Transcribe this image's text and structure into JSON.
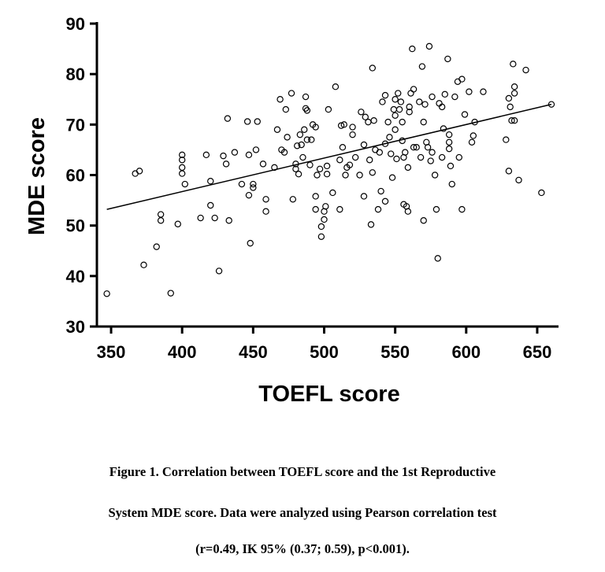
{
  "chart_data": {
    "type": "scatter",
    "xlabel": "TOEFL score",
    "ylabel": "MDE score",
    "xlim": [
      340,
      665
    ],
    "ylim": [
      30,
      90
    ],
    "xticks": [
      350,
      400,
      450,
      500,
      550,
      600,
      650
    ],
    "yticks": [
      30,
      40,
      50,
      60,
      70,
      80,
      90
    ],
    "grid": false,
    "legend": "none",
    "marker": "open-circle",
    "trendline": {
      "x": [
        347,
        660
      ],
      "y": [
        53.2,
        74.0
      ]
    },
    "points": [
      [
        347,
        36.5
      ],
      [
        367,
        60.3
      ],
      [
        370,
        60.8
      ],
      [
        373,
        42.2
      ],
      [
        382,
        45.8
      ],
      [
        385,
        52.2
      ],
      [
        385,
        51.0
      ],
      [
        392,
        36.6
      ],
      [
        397,
        50.3
      ],
      [
        400,
        64.0
      ],
      [
        400,
        63.0
      ],
      [
        400,
        61.5
      ],
      [
        400,
        60.3
      ],
      [
        402,
        58.2
      ],
      [
        413,
        51.5
      ],
      [
        417,
        64.0
      ],
      [
        420,
        58.8
      ],
      [
        420,
        54.0
      ],
      [
        423,
        51.5
      ],
      [
        426,
        41.0
      ],
      [
        429,
        63.8
      ],
      [
        431,
        62.2
      ],
      [
        432,
        71.2
      ],
      [
        433,
        51.0
      ],
      [
        437,
        64.5
      ],
      [
        442,
        58.2
      ],
      [
        446,
        70.6
      ],
      [
        447,
        64.0
      ],
      [
        447,
        56.0
      ],
      [
        448,
        46.5
      ],
      [
        450,
        58.2
      ],
      [
        450,
        57.5
      ],
      [
        452,
        65.0
      ],
      [
        453,
        70.6
      ],
      [
        457,
        62.2
      ],
      [
        459,
        55.2
      ],
      [
        459,
        52.8
      ],
      [
        465,
        61.5
      ],
      [
        467,
        69.0
      ],
      [
        469,
        75.0
      ],
      [
        470,
        65.0
      ],
      [
        472,
        64.5
      ],
      [
        473,
        73.0
      ],
      [
        474,
        67.5
      ],
      [
        477,
        76.2
      ],
      [
        478,
        55.2
      ],
      [
        480,
        61.2
      ],
      [
        480,
        62.2
      ],
      [
        481,
        65.8
      ],
      [
        482,
        60.2
      ],
      [
        483,
        68.0
      ],
      [
        484,
        66.0
      ],
      [
        485,
        63.5
      ],
      [
        486,
        69.0
      ],
      [
        487,
        75.5
      ],
      [
        487,
        73.2
      ],
      [
        488,
        72.8
      ],
      [
        488,
        67.0
      ],
      [
        490,
        62.0
      ],
      [
        491,
        67.0
      ],
      [
        492,
        70.0
      ],
      [
        494,
        69.5
      ],
      [
        494,
        55.8
      ],
      [
        494,
        53.2
      ],
      [
        495,
        60.0
      ],
      [
        497,
        61.2
      ],
      [
        498,
        49.8
      ],
      [
        498,
        47.8
      ],
      [
        500,
        51.2
      ],
      [
        500,
        52.8
      ],
      [
        501,
        53.8
      ],
      [
        502,
        60.2
      ],
      [
        502,
        61.8
      ],
      [
        503,
        73.0
      ],
      [
        506,
        56.5
      ],
      [
        508,
        77.5
      ],
      [
        511,
        53.2
      ],
      [
        511,
        63.0
      ],
      [
        512,
        69.8
      ],
      [
        513,
        65.5
      ],
      [
        514,
        70.0
      ],
      [
        515,
        60.0
      ],
      [
        516,
        61.5
      ],
      [
        518,
        62.0
      ],
      [
        520,
        69.5
      ],
      [
        520,
        68.0
      ],
      [
        522,
        63.5
      ],
      [
        525,
        60.0
      ],
      [
        526,
        72.5
      ],
      [
        528,
        66.0
      ],
      [
        528,
        55.8
      ],
      [
        529,
        71.5
      ],
      [
        531,
        70.5
      ],
      [
        532,
        63.0
      ],
      [
        533,
        50.2
      ],
      [
        534,
        81.2
      ],
      [
        534,
        60.5
      ],
      [
        535,
        70.8
      ],
      [
        536,
        65.0
      ],
      [
        538,
        53.2
      ],
      [
        539,
        64.5
      ],
      [
        540,
        56.8
      ],
      [
        541,
        74.5
      ],
      [
        543,
        75.8
      ],
      [
        543,
        66.2
      ],
      [
        543,
        54.8
      ],
      [
        545,
        70.5
      ],
      [
        546,
        67.5
      ],
      [
        547,
        64.2
      ],
      [
        548,
        59.5
      ],
      [
        549,
        73.0
      ],
      [
        550,
        75.0
      ],
      [
        550,
        71.8
      ],
      [
        550,
        69.0
      ],
      [
        551,
        63.2
      ],
      [
        552,
        76.2
      ],
      [
        553,
        73.0
      ],
      [
        554,
        74.5
      ],
      [
        555,
        70.5
      ],
      [
        555,
        66.8
      ],
      [
        556,
        54.2
      ],
      [
        556,
        63.5
      ],
      [
        557,
        64.5
      ],
      [
        558,
        53.8
      ],
      [
        559,
        52.8
      ],
      [
        559,
        61.5
      ],
      [
        560,
        72.5
      ],
      [
        560,
        73.5
      ],
      [
        561,
        76.2
      ],
      [
        562,
        85.0
      ],
      [
        563,
        77.0
      ],
      [
        563,
        65.5
      ],
      [
        565,
        65.5
      ],
      [
        567,
        74.5
      ],
      [
        568,
        63.5
      ],
      [
        569,
        81.5
      ],
      [
        570,
        70.5
      ],
      [
        570,
        51.0
      ],
      [
        571,
        74.0
      ],
      [
        572,
        66.5
      ],
      [
        573,
        65.5
      ],
      [
        574,
        85.5
      ],
      [
        575,
        62.8
      ],
      [
        576,
        75.5
      ],
      [
        576,
        64.5
      ],
      [
        578,
        60.0
      ],
      [
        579,
        53.2
      ],
      [
        580,
        43.5
      ],
      [
        581,
        74.2
      ],
      [
        583,
        73.5
      ],
      [
        583,
        63.5
      ],
      [
        584,
        69.2
      ],
      [
        585,
        76.0
      ],
      [
        587,
        83.0
      ],
      [
        588,
        65.2
      ],
      [
        588,
        66.5
      ],
      [
        588,
        68.0
      ],
      [
        589,
        61.8
      ],
      [
        590,
        58.2
      ],
      [
        592,
        75.5
      ],
      [
        594,
        78.5
      ],
      [
        595,
        63.5
      ],
      [
        597,
        53.2
      ],
      [
        597,
        79.0
      ],
      [
        599,
        72.0
      ],
      [
        602,
        76.5
      ],
      [
        604,
        66.5
      ],
      [
        605,
        67.8
      ],
      [
        606,
        70.5
      ],
      [
        612,
        76.5
      ],
      [
        628,
        67.0
      ],
      [
        630,
        75.2
      ],
      [
        630,
        60.8
      ],
      [
        631,
        73.5
      ],
      [
        632,
        70.8
      ],
      [
        633,
        82.0
      ],
      [
        634,
        77.5
      ],
      [
        634,
        76.2
      ],
      [
        634,
        70.8
      ],
      [
        637,
        59.0
      ],
      [
        642,
        80.8
      ],
      [
        653,
        56.5
      ],
      [
        660,
        74.0
      ]
    ]
  },
  "caption": {
    "line1": "Figure 1. Correlation between TOEFL score and the 1st Reproductive",
    "line2": "System MDE score. Data were analyzed using Pearson correlation test",
    "line3": "(r=0.49, IK 95% (0.37; 0.59), p<0.001)."
  }
}
